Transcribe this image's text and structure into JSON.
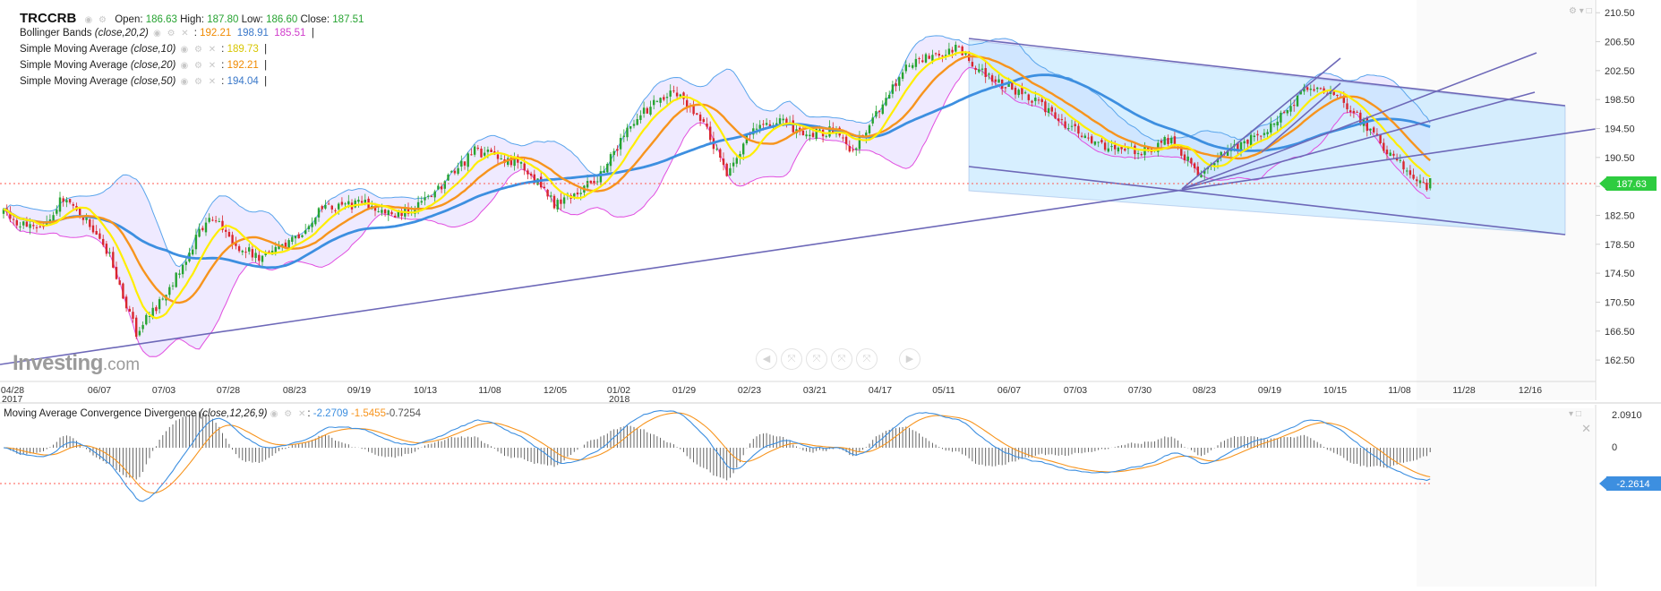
{
  "symbol": "TRCCRB",
  "ohlc": {
    "open_label": "Open:",
    "open": "186.63",
    "high_label": "High:",
    "high": "187.80",
    "low_label": "Low:",
    "low": "186.60",
    "close_label": "Close:",
    "close": "187.51"
  },
  "indicators": {
    "bb": {
      "name": "Bollinger Bands",
      "params": "(close,20,2)",
      "sep": ":",
      "v1": "192.21",
      "v2": "198.91",
      "v3": "185.51",
      "end": "|"
    },
    "sma10": {
      "name": "Simple Moving Average",
      "params": "(close,10)",
      "sep": ":",
      "value": "189.73",
      "end": "|"
    },
    "sma20": {
      "name": "Simple Moving Average",
      "params": "(close,20)",
      "sep": ":",
      "value": "192.21",
      "end": "|"
    },
    "sma50": {
      "name": "Simple Moving Average",
      "params": "(close,50)",
      "sep": ":",
      "value": "194.04",
      "end": "|"
    }
  },
  "macd": {
    "name": "Moving Average Convergence Divergence",
    "params": "(close,12,26,9)",
    "v1": "-2.2709",
    "v2": "-1.5455",
    "v3": "-0.7254"
  },
  "watermark": {
    "brand": "Investing",
    "suffix": ".com"
  },
  "icons": {
    "eye": "eye-icon",
    "settings": "gear-icon",
    "close": "close-icon",
    "maximize": "maximize-icon"
  },
  "colors": {
    "bullish": "#26a331",
    "bearish": "#d9262e",
    "sma10": "#ffee00",
    "sma20": "#f7941d",
    "sma50": "#3d8fe0",
    "bb_upper": "#5aa5ec",
    "bb_lower": "#e14fe0",
    "bb_fill": "#ece6ff",
    "channel_fill": "#b6e1ff",
    "trendline": "#6d68b8",
    "price_badge": "#2ecc40",
    "macd_line": "#3d8fe0",
    "signal_line": "#f7941d",
    "ref_line": "#ff6b5b"
  },
  "chart_data": [
    {
      "type": "candlestick",
      "title": "TRCCRB",
      "x_ticks": [
        "04/28",
        "06/07",
        "07/03",
        "07/28",
        "08/23",
        "09/19",
        "10/13",
        "11/08",
        "12/05",
        "01/02",
        "01/29",
        "02/23",
        "03/21",
        "04/17",
        "05/11",
        "06/07",
        "07/03",
        "07/30",
        "08/23",
        "09/19",
        "10/15",
        "11/08",
        "11/28",
        "12/16"
      ],
      "x_years": [
        "2017",
        "2018"
      ],
      "y_ticks": [
        "210.50",
        "206.50",
        "202.50",
        "198.50",
        "194.50",
        "190.50",
        "186.50",
        "182.50",
        "178.50",
        "174.50",
        "170.50",
        "166.50",
        "162.50"
      ],
      "ylim": [
        160.9,
        210.9
      ],
      "last_price": "187.63",
      "last_price_value": 187.63,
      "anchors": [
        [
          0,
          182.7
        ],
        [
          10,
          180.3
        ],
        [
          18,
          184.9
        ],
        [
          26,
          181.5
        ],
        [
          32,
          177.0
        ],
        [
          40,
          166.3
        ],
        [
          46,
          169.9
        ],
        [
          54,
          175.6
        ],
        [
          62,
          182.7
        ],
        [
          70,
          178.5
        ],
        [
          78,
          176.5
        ],
        [
          86,
          178.5
        ],
        [
          96,
          183.3
        ],
        [
          108,
          184.2
        ],
        [
          118,
          182.4
        ],
        [
          128,
          184.7
        ],
        [
          142,
          191.4
        ],
        [
          154,
          189.9
        ],
        [
          158,
          188.8
        ],
        [
          166,
          184.0
        ],
        [
          178,
          187.1
        ],
        [
          190,
          195.6
        ],
        [
          202,
          199.9
        ],
        [
          210,
          196.2
        ],
        [
          218,
          188.5
        ],
        [
          226,
          194.7
        ],
        [
          234,
          195.4
        ],
        [
          242,
          193.6
        ],
        [
          250,
          194.3
        ],
        [
          256,
          191.5
        ],
        [
          264,
          197.3
        ],
        [
          272,
          202.9
        ],
        [
          280,
          204.8
        ],
        [
          288,
          205.6
        ],
        [
          296,
          201.9
        ],
        [
          304,
          199.9
        ],
        [
          312,
          198.1
        ],
        [
          320,
          195.2
        ],
        [
          328,
          192.6
        ],
        [
          336,
          191.3
        ],
        [
          344,
          191.5
        ],
        [
          352,
          193.0
        ],
        [
          360,
          188.1
        ],
        [
          368,
          191.0
        ],
        [
          376,
          193.3
        ],
        [
          384,
          195.4
        ],
        [
          392,
          200.2
        ],
        [
          400,
          199.7
        ],
        [
          408,
          196.2
        ],
        [
          416,
          192.0
        ],
        [
          424,
          188.3
        ],
        [
          430,
          186.0
        ]
      ],
      "sma_periods": [
        10,
        20,
        50
      ],
      "bollinger": {
        "period": 20,
        "std": 2
      }
    },
    {
      "type": "macd",
      "title": "Moving Average Convergence Divergence",
      "params": [
        12,
        26,
        9
      ],
      "y_ticks": [
        "2.0910",
        "0"
      ],
      "last_value": "-2.2614",
      "last_value_num": -2.2614
    }
  ]
}
